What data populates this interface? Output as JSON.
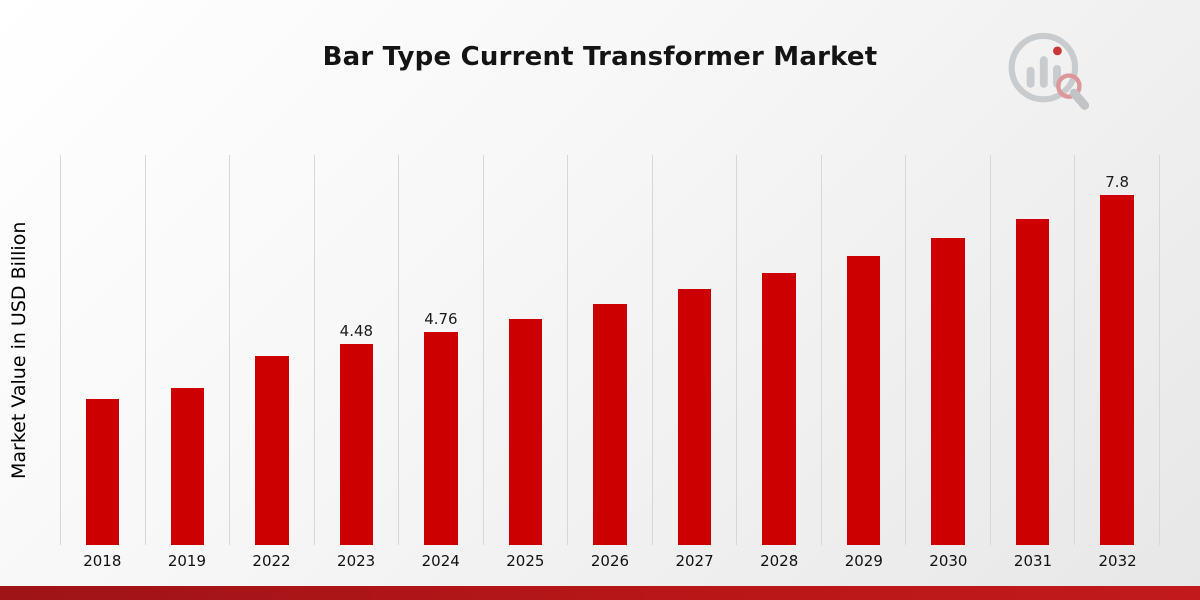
{
  "page": {
    "title": "Bar Type Current Transformer Market"
  },
  "chart_data": {
    "type": "bar",
    "title": "Bar Type Current Transformer Market",
    "xlabel": "",
    "ylabel": "Market Value in USD Billion",
    "categories": [
      "2018",
      "2019",
      "2022",
      "2023",
      "2024",
      "2025",
      "2026",
      "2027",
      "2028",
      "2029",
      "2030",
      "2031",
      "2032"
    ],
    "values": [
      3.25,
      3.5,
      4.22,
      4.48,
      4.76,
      5.05,
      5.37,
      5.7,
      6.06,
      6.44,
      6.84,
      7.27,
      7.8
    ],
    "bar_labels": [
      "",
      "",
      "",
      "4.48",
      "4.76",
      "",
      "",
      "",
      "",
      "",
      "",
      "",
      "7.8"
    ],
    "ylim": [
      0,
      8.7
    ],
    "grid": "vertical",
    "legend": "none",
    "bar_color": "#cc0000",
    "gridline_color": "#d7d7d7"
  },
  "branding": {
    "logo_name": "market-research-logo",
    "accent_color": "#c01818",
    "logo_gray": "#c3c6ca",
    "bottom_band_color": "#b81618"
  }
}
